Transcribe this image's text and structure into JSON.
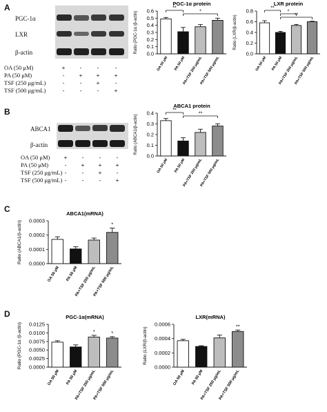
{
  "panels": {
    "A": {
      "letter": "A",
      "blot_labels": [
        "PGC-1α",
        "LXR",
        "β-actin"
      ],
      "treatments": [
        {
          "label": "OA (50 μM)",
          "signs": [
            "+",
            "-",
            "-",
            "-"
          ]
        },
        {
          "label": "PA (50 μM)",
          "signs": [
            "-",
            "+",
            "+",
            "+"
          ]
        },
        {
          "label": "TSF (250 μg/mL)",
          "signs": [
            "-",
            "-",
            "+",
            "-"
          ]
        },
        {
          "label": "TSF (500 μg/mL)",
          "signs": [
            "-",
            "-",
            "-",
            "+"
          ]
        }
      ]
    },
    "B": {
      "letter": "B",
      "blot_labels": [
        "ABCA1",
        "β-actin"
      ],
      "treatments": [
        {
          "label": "OA (50 μM)",
          "signs": [
            "+",
            "-",
            "-",
            "-"
          ]
        },
        {
          "label": "PA (50 μM)",
          "signs": [
            "-",
            "+",
            "+",
            "+"
          ]
        },
        {
          "label": "TSF (250 μg/mL)",
          "signs": [
            "-",
            "-",
            "+",
            "-"
          ]
        },
        {
          "label": "TSF (500 μg/mL)",
          "signs": [
            "-",
            "-",
            "-",
            "+"
          ]
        }
      ]
    },
    "C": {
      "letter": "C"
    },
    "D": {
      "letter": "D"
    }
  },
  "colors": {
    "bar_oa": "#ffffff",
    "bar_pa": "#111111",
    "bar_tsf250": "#bdbdbd",
    "bar_tsf500": "#8c8c8c",
    "axis": "#111111"
  },
  "chart_data": [
    {
      "id": "pgc-protein",
      "type": "bar",
      "title": "PGC-1α protein",
      "ylabel": "Ratio (PGC-1α /β-actin)",
      "categories": [
        "OA 50 μM",
        "PA 50 μM",
        "PA+TSF 250 μg/mL",
        "PA+TSF 500 μg/mL"
      ],
      "values": [
        0.49,
        0.31,
        0.38,
        0.47
      ],
      "errors": [
        0.02,
        0.06,
        0.03,
        0.03
      ],
      "ylim": [
        0,
        0.6
      ],
      "yticks": [
        "0.0",
        "0.1",
        "0.2",
        "0.3",
        "0.4",
        "0.5",
        "0.6"
      ],
      "annotations": [
        {
          "from": 0,
          "to": 1,
          "text": "**"
        },
        {
          "from": 1,
          "to": 3,
          "text": "*"
        }
      ]
    },
    {
      "id": "lxr-protein",
      "type": "bar",
      "title": "LXR protein",
      "ylabel": "Ratio (LXR/β-actin)",
      "categories": [
        "OA 50 μM",
        "PA 50 μM",
        "PA+TSF 250 μg/mL",
        "PA+TSF 500 μg/mL"
      ],
      "values": [
        0.58,
        0.4,
        0.53,
        0.6
      ],
      "errors": [
        0.04,
        0.02,
        0.02,
        0.01
      ],
      "ylim": [
        0,
        0.8
      ],
      "yticks": [
        "0.0",
        "0.2",
        "0.4",
        "0.6",
        "0.8"
      ],
      "annotations": [
        {
          "from": 0,
          "to": 1,
          "text": "**"
        },
        {
          "from": 1,
          "to": 2,
          "text": "*"
        },
        {
          "from": 1,
          "to": 3,
          "text": "**"
        }
      ]
    },
    {
      "id": "abca1-protein",
      "type": "bar",
      "title": "ABCA1 protein",
      "ylabel": "Ratio (ABCA1/β-actin)",
      "categories": [
        "OA 50 μM",
        "PA 50 μM",
        "PA+TSF 250 μg/mL",
        "PA+TSF 500 μg/mL"
      ],
      "values": [
        0.33,
        0.14,
        0.22,
        0.28
      ],
      "errors": [
        0.02,
        0.03,
        0.03,
        0.02
      ],
      "ylim": [
        0,
        0.4
      ],
      "yticks": [
        "0.0",
        "0.1",
        "0.2",
        "0.3",
        "0.4"
      ],
      "annotations": [
        {
          "from": 0,
          "to": 1,
          "text": "**"
        },
        {
          "from": 1,
          "to": 3,
          "text": "**"
        }
      ]
    },
    {
      "id": "abca1-mrna",
      "type": "bar",
      "title": "ABCA1(mRNA)",
      "ylabel": "Ratio (ABCA1/β-actin)",
      "categories": [
        "OA 50 μM",
        "PA 50 μM",
        "PA+TSF 250 μg/mL",
        "PA+TSF 500 μg/mL"
      ],
      "values": [
        0.00017,
        0.000103,
        0.000165,
        0.000219
      ],
      "errors": [
        1.8e-05,
        1.5e-05,
        1.4e-05,
        3e-05
      ],
      "ylim": [
        0,
        0.0003
      ],
      "yticks": [
        "0.0000",
        "0.0001",
        "0.0002",
        "0.0003"
      ],
      "annotations": [
        {
          "bar": 3,
          "text": "*"
        }
      ]
    },
    {
      "id": "pgc-mrna",
      "type": "bar",
      "title": "PGC-1α(mRNA)",
      "ylabel": "Ratio (PGC-1α /β-actin)",
      "categories": [
        "OA 50 μM",
        "PA 50 μM",
        "PA+TSF 250 μg/mL",
        "PA+TSF 500 μg/mL"
      ],
      "values": [
        0.0073,
        0.0059,
        0.0088,
        0.0085
      ],
      "errors": [
        0.0004,
        0.0006,
        0.0005,
        0.0004
      ],
      "ylim": [
        0,
        0.0125
      ],
      "yticks": [
        "0.0000",
        "0.0025",
        "0.0050",
        "0.0075",
        "0.0100",
        "0.0125"
      ],
      "annotations": [
        {
          "bar": 2,
          "text": "*"
        },
        {
          "bar": 3,
          "text": "*"
        }
      ]
    },
    {
      "id": "lxr-mrna",
      "type": "bar",
      "title": "LXR(mRNA)",
      "ylabel": "Ratio (LXR/β-actin)",
      "categories": [
        "OA 50 μM",
        "PA 50 μM",
        "PA+TSF 250 μg/mL",
        "PA+TSF 500 μg/mL"
      ],
      "values": [
        0.00037,
        0.00029,
        0.00041,
        0.0005
      ],
      "errors": [
        2e-05,
        1e-05,
        4e-05,
        2e-05
      ],
      "ylim": [
        0,
        0.0006
      ],
      "yticks": [
        "0.0000",
        "0.0002",
        "0.0004",
        "0.0006"
      ],
      "annotations": [
        {
          "bar": 3,
          "text": "**"
        }
      ]
    }
  ]
}
